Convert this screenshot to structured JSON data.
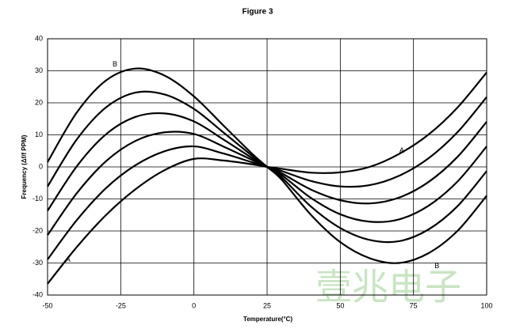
{
  "chart_data": {
    "type": "line",
    "title": "Figure 3",
    "xlabel": "Temperature(°C)",
    "ylabel": "Frequency (Δf/f PPM)",
    "x": [
      -50,
      -40,
      -30,
      -20,
      -10,
      0,
      10,
      20,
      25,
      30,
      40,
      50,
      60,
      70,
      80,
      90,
      100
    ],
    "series": [
      {
        "color": "#000000",
        "values": [
          -36.5,
          -25,
          -15,
          -7,
          -1,
          2.5,
          2,
          0.8,
          0,
          -0.6,
          -1.8,
          -1.7,
          0,
          4,
          10,
          18.5,
          29.5
        ]
      },
      {
        "color": "#000000",
        "values": [
          -28.9,
          -16.6,
          -6.6,
          0.5,
          4.9,
          6.4,
          4.2,
          1.4,
          0,
          -1.3,
          -4.4,
          -6.1,
          -5.7,
          -2.8,
          2.6,
          10.8,
          21.8
        ]
      },
      {
        "color": "#000000",
        "values": [
          -21.3,
          -8.2,
          1.8,
          8.1,
          10.8,
          10.3,
          6.4,
          2.1,
          0,
          -2,
          -7.1,
          -10.4,
          -11.4,
          -9.6,
          -4.8,
          3.1,
          14.1
        ]
      },
      {
        "color": "#000000",
        "values": [
          -13.7,
          0.2,
          10.2,
          15.6,
          16.7,
          14.2,
          8.6,
          2.7,
          0,
          -2.6,
          -9.7,
          -14.8,
          -17.1,
          -16.4,
          -12.2,
          -4.6,
          6.4
        ]
      },
      {
        "color": "#000000",
        "values": [
          -6.1,
          8.6,
          18.6,
          23.2,
          22.6,
          18.1,
          10.8,
          3.4,
          0,
          -3.3,
          -12.4,
          -19.1,
          -22.8,
          -23.2,
          -19.6,
          -12.3,
          -1.3
        ]
      },
      {
        "color": "#000000",
        "values": [
          1.5,
          17,
          27,
          30.7,
          28.5,
          22,
          13,
          4,
          0,
          -4,
          -15,
          -23.5,
          -28.5,
          -30,
          -27,
          -20,
          -9
        ]
      }
    ],
    "annotations": [
      {
        "text": "B",
        "x": -27,
        "y": 32
      },
      {
        "text": "A",
        "x": -43,
        "y": -29
      },
      {
        "text": "A",
        "x": 71,
        "y": 5
      },
      {
        "text": "B",
        "x": 83,
        "y": -31
      }
    ],
    "watermark": "壹兆电子",
    "xlim": [
      -50,
      100
    ],
    "ylim": [
      -40,
      40
    ],
    "xticks": [
      -50,
      -25,
      0,
      25,
      50,
      75,
      100
    ],
    "yticks": [
      -40,
      -30,
      -20,
      -10,
      0,
      10,
      20,
      30,
      40
    ],
    "grid": true
  }
}
